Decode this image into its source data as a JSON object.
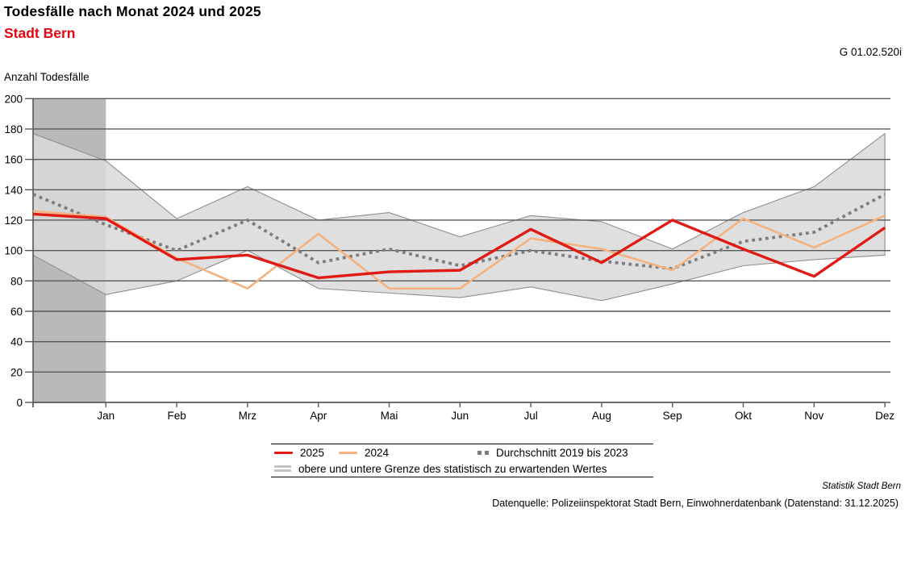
{
  "header": {
    "title": "Todesfälle nach Monat 2024 und 2025",
    "subtitle": "Stadt Bern",
    "code": "G 01.02.520i"
  },
  "y_axis_label": "Anzahl Todesfälle",
  "legend": {
    "label_2025": "2025",
    "label_2024": "2024",
    "label_avg": "Durchschnitt 2019 bis 2023",
    "label_band": "obere und untere Grenze des statistisch zu erwartenden Wertes"
  },
  "footer": {
    "credit": "Statistik Stadt Bern",
    "source": "Datenquelle: Polizeiinspektorat Stadt Bern, Einwohnerdatenbank (Datenstand: 31.12.2025)"
  },
  "colors": {
    "subtitle_red": "#e30613",
    "line_2025": "#e01a14",
    "line_2024": "#f5b27f",
    "line_avg": "#7d7d7d",
    "band_fill": "#d9d9d9",
    "band_stroke": "#8f8f8f",
    "highlight_rect": "#b9b9b9",
    "grid": "#595959",
    "text": "#000000"
  },
  "chart_data": {
    "type": "line",
    "title": "Todesfälle nach Monat 2024 und 2025 — Stadt Bern",
    "ylabel": "Anzahl Todesfälle",
    "ylim": [
      0,
      200
    ],
    "ytick_step": 20,
    "grid": true,
    "categories": [
      "",
      "Jan",
      "Feb",
      "Mrz",
      "Apr",
      "Mai",
      "Jun",
      "Jul",
      "Aug",
      "Sep",
      "Okt",
      "Nov",
      "Dez"
    ],
    "first_point_note": "leftmost unlabeled point sits on the y-axis, one month before Jan",
    "series": [
      {
        "name": "2025",
        "style": "solid",
        "values": [
          124,
          121,
          94,
          97,
          82,
          86,
          87,
          114,
          92,
          120,
          101,
          83,
          115
        ]
      },
      {
        "name": "2024",
        "style": "solid",
        "values": [
          126,
          122,
          95,
          75,
          111,
          75,
          75,
          108,
          101,
          87,
          121,
          102,
          123
        ]
      },
      {
        "name": "Durchschnitt 2019 bis 2023",
        "style": "dotted",
        "values": [
          137,
          117,
          100,
          120,
          92,
          101,
          90,
          100,
          93,
          88,
          106,
          112,
          137
        ]
      }
    ],
    "band": {
      "name": "obere und untere Grenze des statistisch zu erwartenden Wertes",
      "upper": [
        177,
        159,
        121,
        142,
        120,
        125,
        109,
        123,
        119,
        101,
        125,
        142,
        177
      ],
      "lower": [
        97,
        71,
        80,
        100,
        75,
        72,
        69,
        76,
        67,
        78,
        90,
        94,
        97
      ]
    },
    "highlight_region": {
      "from_index": 0,
      "to_index": 1
    },
    "legend_position": "bottom"
  }
}
